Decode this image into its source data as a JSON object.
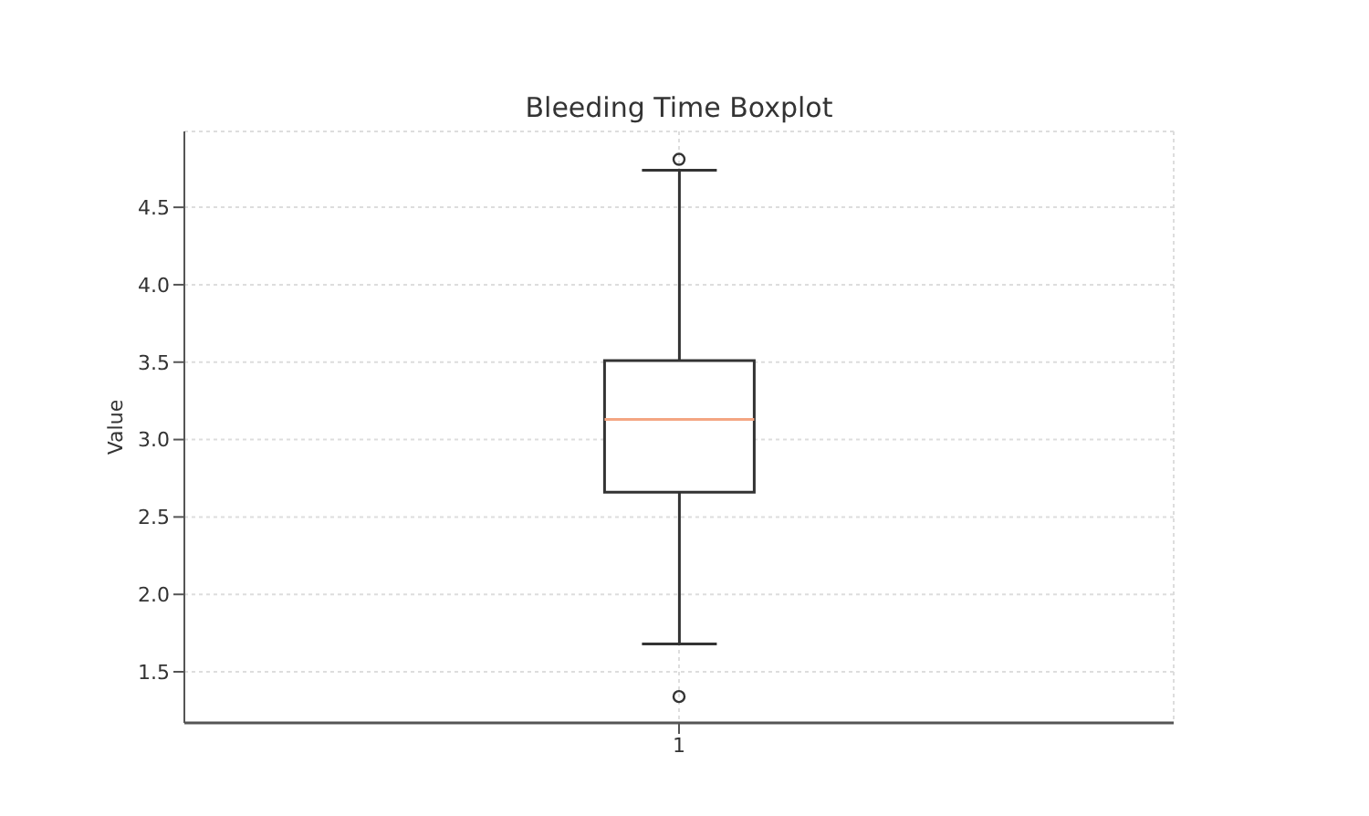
{
  "chart_data": {
    "type": "box",
    "title": "Bleeding Time Boxplot",
    "ylabel": "Value",
    "categories": [
      "1"
    ],
    "boxes": [
      {
        "low": 1.68,
        "q1": 2.66,
        "median": 3.13,
        "q3": 3.51,
        "high": 4.74,
        "outliers": [
          1.34,
          4.81
        ]
      }
    ],
    "ylim": [
      1.17,
      4.99
    ],
    "yticks": [
      1.5,
      {
        "value": 2,
        "label": "2.0"
      },
      2.5,
      {
        "value": 3,
        "label": "3.0"
      },
      3.5,
      {
        "value": 4,
        "label": "4.0"
      },
      4.5
    ],
    "grid": true
  }
}
